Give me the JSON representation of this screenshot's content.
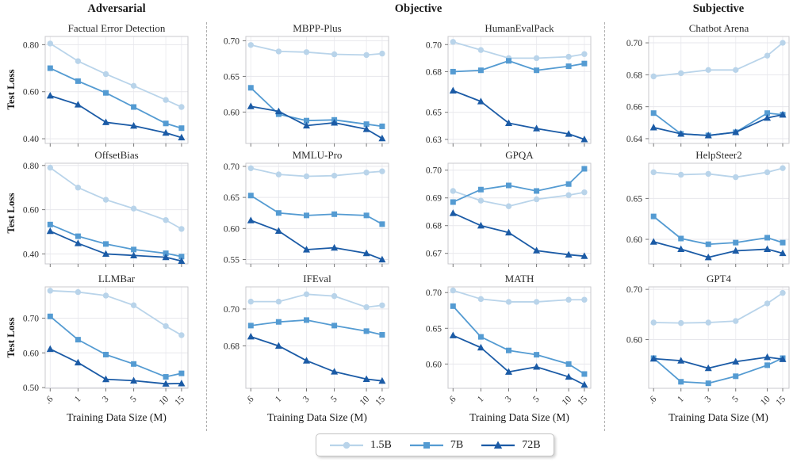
{
  "headers": [
    {
      "label": "Adversarial"
    },
    {
      "label": "Objective"
    },
    {
      "label": "Subjective"
    }
  ],
  "legend": {
    "items": [
      {
        "label": "1.5B",
        "marker": "circle",
        "color": "#b9d4ea"
      },
      {
        "label": "7B",
        "marker": "square",
        "color": "#549bd2"
      },
      {
        "label": "72B",
        "marker": "triangle",
        "color": "#1b5ba6"
      }
    ]
  },
  "chart_data": {
    "type": "line",
    "xlabel": "Training Data Size (M)",
    "ylabel": "Test Loss",
    "x": [
      0.6,
      1,
      3,
      5,
      10,
      15
    ],
    "x_tick_labels": [
      ".6",
      "1",
      "3",
      "5",
      "10",
      "15"
    ],
    "legend_position": "bottom-center",
    "grid": true,
    "charts": [
      {
        "title": "Factual Error Detection",
        "group": "Adversarial",
        "yticks": [
          0.4,
          0.6,
          0.8
        ],
        "ylim": [
          0.38,
          0.835
        ],
        "series": [
          {
            "name": "1.5B",
            "values": [
              0.805,
              0.73,
              0.675,
              0.625,
              0.565,
              0.535
            ]
          },
          {
            "name": "7B",
            "values": [
              0.7,
              0.645,
              0.595,
              0.535,
              0.465,
              0.445
            ]
          },
          {
            "name": "72B",
            "values": [
              0.583,
              0.545,
              0.47,
              0.455,
              0.425,
              0.405
            ]
          }
        ]
      },
      {
        "title": "MBPP-Plus",
        "group": "Objective",
        "yticks": [
          0.6,
          0.65,
          0.7
        ],
        "ylim": [
          0.556,
          0.706
        ],
        "series": [
          {
            "name": "1.5B",
            "values": [
              0.694,
              0.685,
              0.684,
              0.681,
              0.68,
              0.682
            ]
          },
          {
            "name": "7B",
            "values": [
              0.634,
              0.597,
              0.588,
              0.589,
              0.583,
              0.58
            ]
          },
          {
            "name": "72B",
            "values": [
              0.608,
              0.601,
              0.581,
              0.585,
              0.576,
              0.563
            ]
          }
        ]
      },
      {
        "title": "HumanEvalPack",
        "group": "Objective",
        "yticks": [
          0.63,
          0.65,
          0.68,
          0.7
        ],
        "ylim": [
          0.627,
          0.706
        ],
        "series": [
          {
            "name": "1.5B",
            "values": [
              0.702,
              0.696,
              0.69,
              0.69,
              0.691,
              0.693
            ]
          },
          {
            "name": "7B",
            "values": [
              0.68,
              0.681,
              0.688,
              0.681,
              0.684,
              0.686
            ]
          },
          {
            "name": "72B",
            "values": [
              0.666,
              0.658,
              0.642,
              0.638,
              0.634,
              0.63
            ]
          }
        ]
      },
      {
        "title": "Chatbot Arena",
        "group": "Subjective",
        "yticks": [
          0.64,
          0.66,
          0.68,
          0.7
        ],
        "ylim": [
          0.637,
          0.704
        ],
        "series": [
          {
            "name": "1.5B",
            "values": [
              0.679,
              0.681,
              0.683,
              0.683,
              0.692,
              0.7
            ]
          },
          {
            "name": "7B",
            "values": [
              0.656,
              0.643,
              0.642,
              0.644,
              0.656,
              0.655
            ]
          },
          {
            "name": "72B",
            "values": [
              0.647,
              0.643,
              0.642,
              0.644,
              0.653,
              0.655
            ]
          }
        ]
      },
      {
        "title": "OffsetBias",
        "group": "Adversarial",
        "yticks": [
          0.4,
          0.6,
          0.8
        ],
        "ylim": [
          0.355,
          0.81
        ],
        "series": [
          {
            "name": "1.5B",
            "values": [
              0.79,
              0.7,
              0.645,
              0.605,
              0.553,
              0.513
            ]
          },
          {
            "name": "7B",
            "values": [
              0.533,
              0.48,
              0.445,
              0.42,
              0.403,
              0.388
            ]
          },
          {
            "name": "72B",
            "values": [
              0.503,
              0.448,
              0.4,
              0.393,
              0.385,
              0.368
            ]
          }
        ]
      },
      {
        "title": "MMLU-Pro",
        "group": "Objective",
        "yticks": [
          0.55,
          0.6,
          0.65,
          0.7
        ],
        "ylim": [
          0.543,
          0.705
        ],
        "series": [
          {
            "name": "1.5B",
            "values": [
              0.697,
              0.687,
              0.684,
              0.685,
              0.69,
              0.692
            ]
          },
          {
            "name": "7B",
            "values": [
              0.653,
              0.625,
              0.621,
              0.623,
              0.621,
              0.607
            ]
          },
          {
            "name": "72B",
            "values": [
              0.613,
              0.596,
              0.566,
              0.569,
              0.56,
              0.55
            ]
          }
        ]
      },
      {
        "title": "GPQA",
        "group": "Objective",
        "yticks": [
          0.67,
          0.68,
          0.69,
          0.7
        ],
        "ylim": [
          0.6662,
          0.7025
        ],
        "series": [
          {
            "name": "1.5B",
            "values": [
              0.6925,
              0.689,
              0.687,
              0.6895,
              0.691,
              0.692
            ]
          },
          {
            "name": "7B",
            "values": [
              0.6885,
              0.693,
              0.6945,
              0.6925,
              0.695,
              0.7005
            ]
          },
          {
            "name": "72B",
            "values": [
              0.6845,
              0.68,
              0.6775,
              0.671,
              0.6695,
              0.669
            ]
          }
        ]
      },
      {
        "title": "HelpSteer2",
        "group": "Subjective",
        "yticks": [
          0.6,
          0.65
        ],
        "ylim": [
          0.57,
          0.693
        ],
        "series": [
          {
            "name": "1.5B",
            "values": [
              0.682,
              0.679,
              0.68,
              0.676,
              0.682,
              0.687
            ]
          },
          {
            "name": "7B",
            "values": [
              0.628,
              0.601,
              0.594,
              0.596,
              0.602,
              0.596
            ]
          },
          {
            "name": "72B",
            "values": [
              0.597,
              0.588,
              0.578,
              0.586,
              0.588,
              0.583
            ]
          }
        ]
      },
      {
        "title": "LLMBar",
        "group": "Adversarial",
        "yticks": [
          0.5,
          0.6,
          0.7
        ],
        "ylim": [
          0.498,
          0.79
        ],
        "series": [
          {
            "name": "1.5B",
            "values": [
              0.779,
              0.775,
              0.765,
              0.737,
              0.677,
              0.651
            ]
          },
          {
            "name": "7B",
            "values": [
              0.705,
              0.638,
              0.595,
              0.568,
              0.531,
              0.541
            ]
          },
          {
            "name": "72B",
            "values": [
              0.611,
              0.572,
              0.524,
              0.52,
              0.511,
              0.512
            ]
          }
        ]
      },
      {
        "title": "IFEval",
        "group": "Objective",
        "yticks": [
          0.68,
          0.7
        ],
        "ylim": [
          0.657,
          0.712
        ],
        "series": [
          {
            "name": "1.5B",
            "values": [
              0.704,
              0.704,
              0.708,
              0.707,
              0.701,
              0.702
            ]
          },
          {
            "name": "7B",
            "values": [
              0.691,
              0.693,
              0.694,
              0.691,
              0.688,
              0.686
            ]
          },
          {
            "name": "72B",
            "values": [
              0.685,
              0.68,
              0.672,
              0.666,
              0.662,
              0.661
            ]
          }
        ]
      },
      {
        "title": "MATH",
        "group": "Objective",
        "yticks": [
          0.6,
          0.65,
          0.7
        ],
        "ylim": [
          0.566,
          0.708
        ],
        "series": [
          {
            "name": "1.5B",
            "values": [
              0.703,
              0.691,
              0.687,
              0.687,
              0.69,
              0.69
            ]
          },
          {
            "name": "7B",
            "values": [
              0.681,
              0.638,
              0.619,
              0.613,
              0.6,
              0.586
            ]
          },
          {
            "name": "72B",
            "values": [
              0.64,
              0.623,
              0.589,
              0.596,
              0.582,
              0.571
            ]
          }
        ]
      },
      {
        "title": "GPT4",
        "group": "Subjective",
        "yticks": [
          0.6,
          0.7
        ],
        "ylim": [
          0.503,
          0.705
        ],
        "series": [
          {
            "name": "1.5B",
            "values": [
              0.634,
              0.633,
              0.634,
              0.637,
              0.672,
              0.693
            ]
          },
          {
            "name": "7B",
            "values": [
              0.563,
              0.516,
              0.513,
              0.527,
              0.549,
              0.563
            ]
          },
          {
            "name": "72B",
            "values": [
              0.562,
              0.558,
              0.543,
              0.556,
              0.565,
              0.561
            ]
          }
        ]
      }
    ]
  }
}
